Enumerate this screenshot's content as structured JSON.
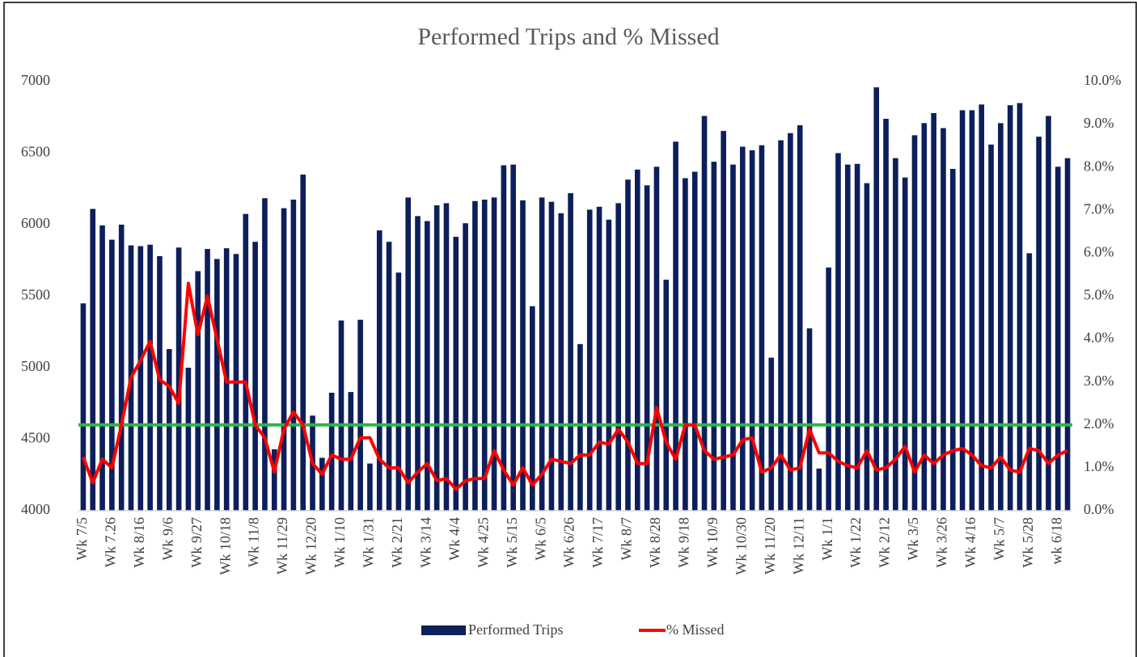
{
  "chart_data": {
    "type": "bar_line",
    "title": "Performed Trips and % Missed",
    "categories": [
      "Wk 7/5",
      null,
      null,
      "Wk 7.26",
      null,
      null,
      "Wk 8/16",
      null,
      null,
      "Wk 9/6",
      null,
      null,
      "Wk 9/27",
      null,
      null,
      "Wk 10/18",
      null,
      null,
      "Wk 11/8",
      null,
      null,
      "Wk 11/29",
      null,
      null,
      "Wk 12/20",
      null,
      null,
      "Wk 1/10",
      null,
      null,
      "Wk 1/31",
      null,
      null,
      "Wk 2/21",
      null,
      null,
      "Wk 3/14",
      null,
      null,
      "Wk 4/4",
      null,
      null,
      "Wk 4/25",
      null,
      null,
      "Wk 5/15",
      null,
      null,
      "Wk 6/5",
      null,
      null,
      "Wk 6/26",
      null,
      null,
      "Wk 7/17",
      null,
      null,
      "Wk 8/7",
      null,
      null,
      "Wk 8/28",
      null,
      null,
      "Wk 9/18",
      null,
      null,
      "Wk 10/9",
      null,
      null,
      "Wk 10/30",
      null,
      null,
      "Wk 11/20",
      null,
      null,
      "Wk 12/11",
      null,
      null,
      "Wk 1/1",
      null,
      null,
      "Wk 1/22",
      null,
      null,
      "Wk 2/12",
      null,
      null,
      "Wk 3/5",
      null,
      null,
      "Wk 3/26",
      null,
      null,
      "Wk 4/16",
      null,
      null,
      "Wk 5/7",
      null,
      null,
      "Wk 5/28",
      null,
      null,
      "wk 6/18",
      null
    ],
    "series": [
      {
        "name": "Performed Trips",
        "type": "bar",
        "color": "#0c1f5a",
        "values": [
          5450,
          6110,
          5995,
          5895,
          6000,
          5855,
          5850,
          5860,
          5780,
          5130,
          5840,
          5000,
          5675,
          5830,
          5760,
          5835,
          5795,
          6075,
          5880,
          6185,
          4430,
          6115,
          6175,
          6350,
          4665,
          4370,
          4825,
          5330,
          4830,
          5335,
          4330,
          5960,
          5880,
          5665,
          6190,
          6060,
          6025,
          6135,
          6150,
          5915,
          6010,
          6165,
          6175,
          6190,
          6415,
          6420,
          6170,
          5430,
          6190,
          6160,
          6080,
          6220,
          5165,
          6105,
          6125,
          6035,
          6150,
          6315,
          6385,
          6275,
          6405,
          5615,
          6580,
          6325,
          6370,
          6760,
          6440,
          6655,
          6420,
          6545,
          6520,
          6555,
          5070,
          6590,
          6640,
          6695,
          5275,
          4295,
          5700,
          6500,
          6420,
          6425,
          6290,
          6960,
          6740,
          6465,
          6330,
          6625,
          6710,
          6780,
          6675,
          6390,
          6800,
          6800,
          6840,
          6560,
          6710,
          6835,
          6850,
          5800,
          6615,
          6760,
          6405,
          6465
        ]
      },
      {
        "name": "% Missed",
        "type": "line",
        "axis": "y2",
        "color": "#ff0000",
        "values": [
          1.25,
          0.65,
          1.2,
          1.0,
          2.0,
          3.1,
          3.5,
          3.95,
          3.05,
          2.9,
          2.5,
          5.3,
          4.1,
          5.0,
          4.0,
          3.0,
          3.0,
          3.0,
          2.0,
          1.7,
          0.9,
          1.9,
          2.3,
          2.0,
          1.1,
          0.85,
          1.3,
          1.2,
          1.2,
          1.7,
          1.7,
          1.2,
          1.0,
          1.0,
          0.65,
          0.9,
          1.1,
          0.7,
          0.75,
          0.5,
          0.7,
          0.75,
          0.75,
          1.4,
          0.95,
          0.6,
          1.0,
          0.6,
          0.85,
          1.2,
          1.15,
          1.1,
          1.3,
          1.3,
          1.6,
          1.55,
          1.9,
          1.6,
          1.1,
          1.1,
          2.4,
          1.6,
          1.2,
          2.0,
          2.0,
          1.4,
          1.2,
          1.25,
          1.3,
          1.65,
          1.7,
          0.9,
          1.0,
          1.3,
          0.95,
          1.0,
          1.9,
          1.35,
          1.35,
          1.15,
          1.05,
          1.0,
          1.4,
          0.95,
          1.0,
          1.2,
          1.5,
          0.9,
          1.3,
          1.1,
          1.3,
          1.4,
          1.45,
          1.3,
          1.05,
          1.0,
          1.25,
          0.95,
          0.9,
          1.45,
          1.4,
          1.1,
          1.3,
          1.4
        ]
      }
    ],
    "reference_line": {
      "value": 2,
      "axis": "y2",
      "color": "#2db34a"
    },
    "ylim": [
      4000,
      7000
    ],
    "yticks": [
      4000,
      4500,
      5000,
      5500,
      6000,
      6500,
      7000
    ],
    "y2lim": [
      0,
      10
    ],
    "y2ticks": [
      {
        "value": 0,
        "label": "0.0%"
      },
      {
        "value": 1,
        "label": "1.0%"
      },
      {
        "value": 2,
        "label": "2.0%"
      },
      {
        "value": 3,
        "label": "3.0%"
      },
      {
        "value": 4,
        "label": "4.0%"
      },
      {
        "value": 5,
        "label": "5.0%"
      },
      {
        "value": 6,
        "label": "6.0%"
      },
      {
        "value": 7,
        "label": "7.0%"
      },
      {
        "value": 8,
        "label": "8.0%"
      },
      {
        "value": 9,
        "label": "9.0%"
      },
      {
        "value": 10,
        "label": "10.0%"
      }
    ],
    "legend": "bottom"
  }
}
